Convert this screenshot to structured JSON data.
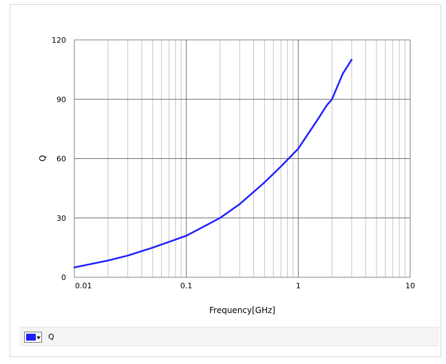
{
  "chart_data": {
    "type": "line",
    "title": "",
    "xlabel": "Frequency[GHz]",
    "ylabel": "Q",
    "xscale": "log",
    "xlim": [
      0.01,
      10
    ],
    "ylim": [
      0,
      120
    ],
    "grid": true,
    "x_ticks": [
      "0.01",
      "0.1",
      "1",
      "10"
    ],
    "y_ticks": [
      "0",
      "30",
      "60",
      "90",
      "120"
    ],
    "legend_position": "bottom",
    "series": [
      {
        "name": "Q",
        "color": "#1f1fff",
        "x": [
          0.01,
          0.02,
          0.03,
          0.05,
          0.1,
          0.2,
          0.3,
          0.5,
          0.7,
          1.0,
          1.5,
          1.8,
          2.0,
          2.5,
          3.0
        ],
        "y": [
          5,
          8.5,
          11,
          15,
          21,
          30,
          37,
          48,
          56,
          65,
          80,
          87,
          90,
          103,
          110
        ]
      }
    ]
  },
  "legend": {
    "label": "Q"
  }
}
